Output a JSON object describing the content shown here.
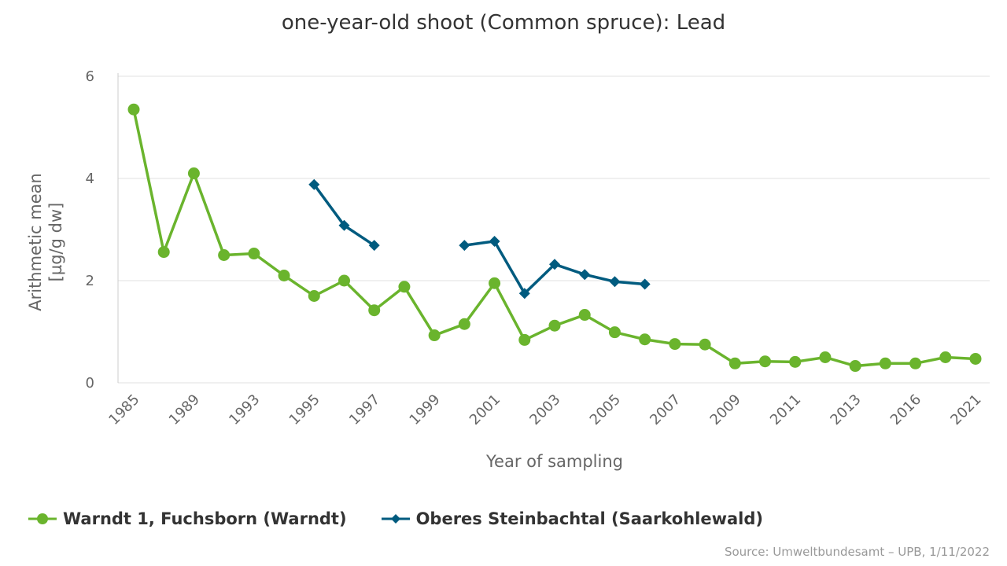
{
  "chart_data": {
    "type": "line",
    "title": "one-year-old shoot (Common spruce): Lead",
    "xlabel": "Year of sampling",
    "ylabel": "Arithmetic mean [µg/g dw]",
    "ylabel_lines": [
      "Arithmetic mean",
      "[µg/g dw]"
    ],
    "ylim": [
      0,
      6
    ],
    "yticks": [
      0,
      2,
      4,
      6
    ],
    "grid": "horizontal",
    "legend_position": "bottom-left",
    "categories": [
      "1985",
      "1987",
      "1989",
      "1991",
      "1993",
      "1994",
      "1995",
      "1996",
      "1997",
      "1998",
      "1999",
      "2000",
      "2001",
      "2002",
      "2003",
      "2004",
      "2005",
      "2006",
      "2007",
      "2008",
      "2009",
      "2010",
      "2011",
      "2012",
      "2013",
      "2015",
      "2016",
      "2019",
      "2021"
    ],
    "xtick_labels": [
      "1985",
      "1989",
      "1993",
      "1995",
      "1997",
      "1999",
      "2001",
      "2003",
      "2005",
      "2007",
      "2009",
      "2011",
      "2013",
      "2016",
      "2021"
    ],
    "series": [
      {
        "name": "Warndt 1, Fuchsborn (Warndt)",
        "color": "#6ab42d",
        "marker": "circle",
        "values": [
          5.35,
          2.56,
          4.1,
          2.5,
          2.53,
          2.1,
          1.7,
          2.0,
          1.42,
          1.88,
          0.93,
          1.15,
          1.95,
          0.84,
          1.12,
          1.33,
          0.99,
          0.85,
          0.76,
          0.75,
          0.38,
          0.42,
          0.41,
          0.5,
          0.33,
          0.38,
          0.38,
          0.5,
          0.47
        ]
      },
      {
        "name": "Oberes Steinbachtal (Saarkohlewald)",
        "color": "#005b7f",
        "marker": "diamond",
        "values": [
          null,
          null,
          null,
          null,
          null,
          null,
          3.88,
          3.08,
          2.69,
          null,
          null,
          2.69,
          2.77,
          1.75,
          2.32,
          2.12,
          1.98,
          1.93,
          null,
          null,
          null,
          null,
          null,
          null,
          null,
          null,
          null,
          null,
          null
        ]
      }
    ]
  },
  "source": "Source: Umweltbundesamt – UPB, 1/11/2022"
}
